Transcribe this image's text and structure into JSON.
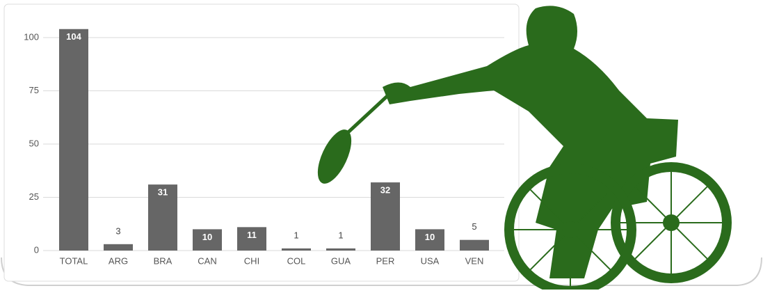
{
  "chart_data": {
    "type": "bar",
    "categories": [
      "TOTAL",
      "ARG",
      "BRA",
      "CAN",
      "CHI",
      "COL",
      "GUA",
      "PER",
      "USA",
      "VEN"
    ],
    "values": [
      104,
      3,
      31,
      10,
      11,
      1,
      1,
      32,
      10,
      5
    ],
    "color": "#666666",
    "ylim": [
      0,
      110
    ],
    "yticks": [
      0,
      25,
      50,
      75,
      100
    ],
    "grid": true
  }
}
